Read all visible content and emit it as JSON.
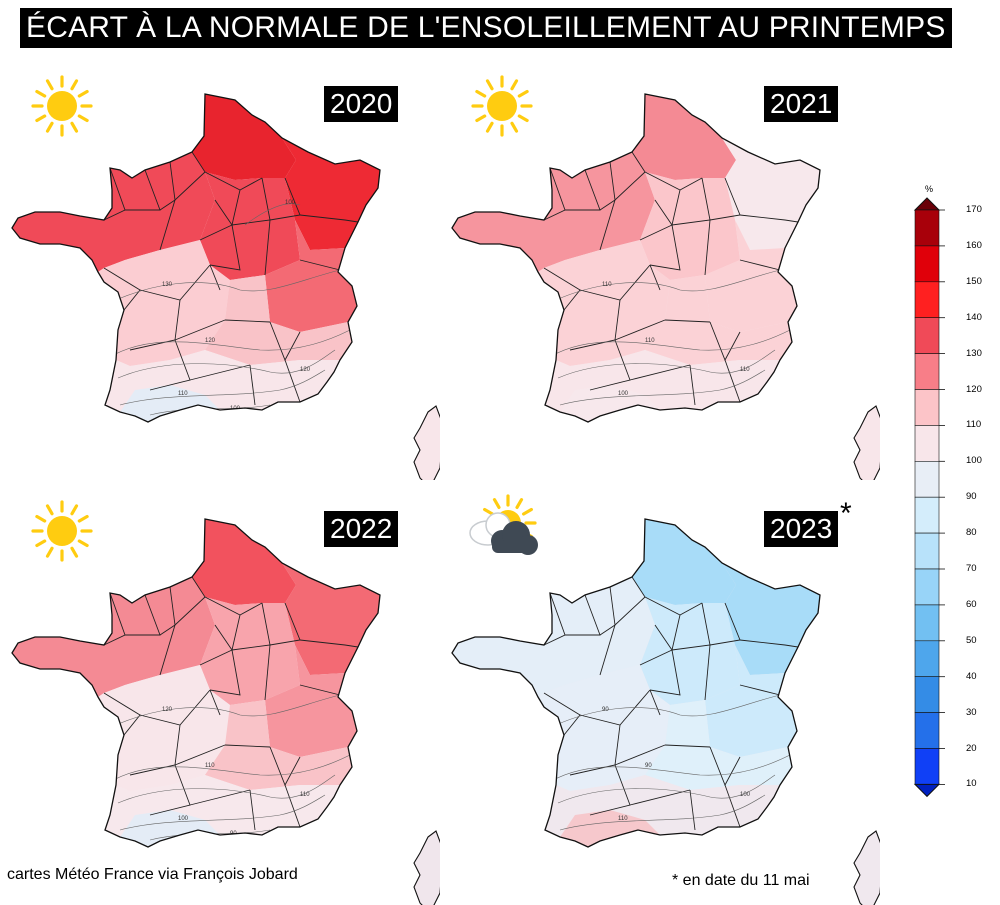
{
  "title": "ÉCART À LA NORMALE DE L'ENSOLEILLEMENT AU PRINTEMPS",
  "credit": "cartes Météo France via François Jobard",
  "note": "* en date du 11 mai",
  "legend": {
    "unit": "%",
    "ticks": [
      "170",
      "160",
      "150",
      "140",
      "130",
      "120",
      "110",
      "100",
      "90",
      "80",
      "70",
      "60",
      "50",
      "40",
      "30",
      "20",
      "10"
    ],
    "colors": [
      "#a8000a",
      "#e0000a",
      "#ff2020",
      "#f04a58",
      "#f87e88",
      "#fcc4c8",
      "#f8e6ea",
      "#e8eef6",
      "#d4edfb",
      "#b8e2fa",
      "#98d4f8",
      "#72c0f2",
      "#4ea6ec",
      "#348ce6",
      "#2470ea",
      "#1040f6"
    ]
  },
  "panels": [
    {
      "year": "2020",
      "icon": "sun-icon",
      "marked": false,
      "contours": [
        "130",
        "120",
        "120",
        "110",
        "100",
        "100"
      ],
      "zones": {
        "north": "#e8242e",
        "northeast": "#ee2a34",
        "west": "#f04a58",
        "center": "#f04a58",
        "east": "#f36a74",
        "southwest": "#fbcdd2",
        "southcentral": "#f9c3c8",
        "south": "#f8e6ea",
        "pyrenees": "#e4ecf6",
        "corsica": "#f8e6ea"
      }
    },
    {
      "year": "2021",
      "icon": "sun-icon",
      "marked": false,
      "contours": [
        "110",
        "110",
        "110",
        "100"
      ],
      "zones": {
        "north": "#f48a94",
        "northeast": "#f7e8ec",
        "west": "#f6959e",
        "center": "#fbc6cb",
        "east": "#fbd2d6",
        "southwest": "#fbd2d6",
        "southcentral": "#fbd2d6",
        "south": "#f8e6ea",
        "pyrenees": "#f7e8ec",
        "corsica": "#f8e6ea"
      }
    },
    {
      "year": "2022",
      "icon": "sun-icon",
      "marked": false,
      "contours": [
        "120",
        "110",
        "110",
        "100",
        "90"
      ],
      "zones": {
        "north": "#f2525e",
        "northeast": "#f36a74",
        "west": "#f48a94",
        "center": "#f8a4ac",
        "east": "#f6959e",
        "southwest": "#f8e6ea",
        "southcentral": "#f9c3c8",
        "south": "#f7e8ec",
        "pyrenees": "#e4ecf6",
        "corsica": "#f0e6ec"
      }
    },
    {
      "year": "2023",
      "icon": "sun-behind-cloud-icon",
      "marked": true,
      "contours": [
        "90",
        "90",
        "100",
        "110"
      ],
      "zones": {
        "north": "#a8dcf8",
        "northeast": "#a8dcf8",
        "west": "#e4eef8",
        "center": "#cdeafb",
        "east": "#cdeafb",
        "southwest": "#e6eef8",
        "southcentral": "#dff0fa",
        "south": "#f0e8ee",
        "pyrenees": "#f6c8cc",
        "corsica": "#f0e8ee"
      }
    }
  ]
}
